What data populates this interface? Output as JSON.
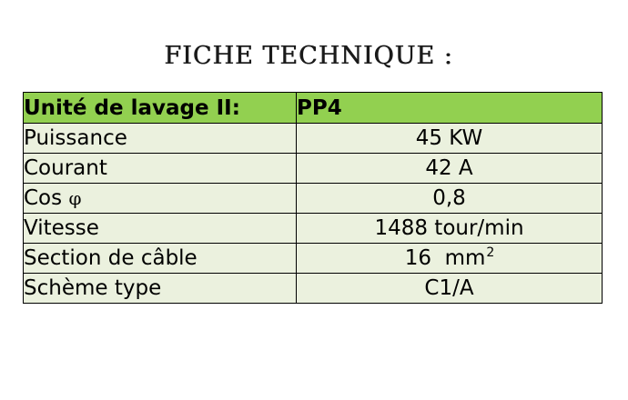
{
  "title": "FICHE TECHNIQUE :",
  "table": {
    "header": {
      "label": "Unité de lavage II:",
      "value": "PP4"
    },
    "rows": [
      {
        "label": "Puissance",
        "value": "45 KW"
      },
      {
        "label": "Courant",
        "value": "42 A"
      },
      {
        "label": "Cos",
        "label_symbol": "φ",
        "value": "0,8"
      },
      {
        "label": "Vitesse",
        "value": "1488 tour/min"
      },
      {
        "label": "Section de câble",
        "value": "16  mm",
        "value_sup": "2"
      },
      {
        "label": "Schème type",
        "value": "C1/A"
      }
    ]
  },
  "colors": {
    "header_bg": "#92d050",
    "row_bg": "#ebf1de",
    "border": "#000000"
  }
}
